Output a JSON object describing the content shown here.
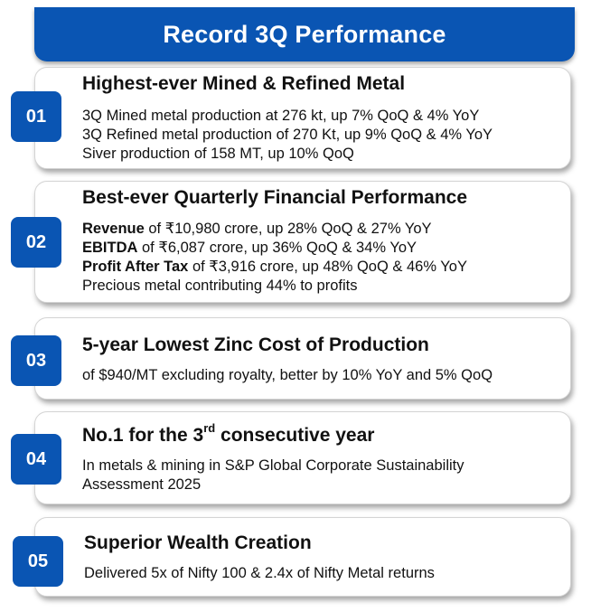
{
  "header": {
    "title": "Record 3Q Performance"
  },
  "cards": [
    {
      "number": "01",
      "title": "Highest-ever Mined & Refined Metal",
      "lines": [
        "3Q Mined metal production at 276 kt, up 7% QoQ & 4% YoY",
        "3Q Refined metal production of 270 Kt, up 9% QoQ & 4% YoY",
        "Siver production of 158 MT, up 10% QoQ"
      ]
    },
    {
      "number": "02",
      "title": "Best-ever Quarterly Financial Performance",
      "lines": [
        {
          "label": "Revenue",
          "text": " of ₹10,980 crore, up 28% QoQ & 27% YoY"
        },
        {
          "label": "EBITDA",
          "text": " of ₹6,087 crore, up 36% QoQ & 34% YoY"
        },
        {
          "label": "Profit After Tax",
          "text": " of ₹3,916 crore, up 48% QoQ & 46% YoY"
        },
        {
          "text": "Precious metal contributing 44% to profits"
        }
      ]
    },
    {
      "number": "03",
      "title": "5-year Lowest Zinc Cost of Production",
      "lines": [
        "of $940/MT excluding royalty, better by 10% YoY and 5% QoQ"
      ]
    },
    {
      "number": "04",
      "title_pre": "No.1 for the 3",
      "title_sup": "rd",
      "title_post": " consecutive year",
      "lines": [
        "In metals & mining in S&P Global Corporate Sustainability Assessment 2025"
      ]
    },
    {
      "number": "05",
      "title": "Superior Wealth Creation",
      "lines": [
        "Delivered 5x of Nifty 100 & 2.4x of Nifty Metal returns"
      ]
    }
  ],
  "colors": {
    "accent": "#0a55b3",
    "card_border": "#d4d4d4",
    "text": "#111111"
  }
}
